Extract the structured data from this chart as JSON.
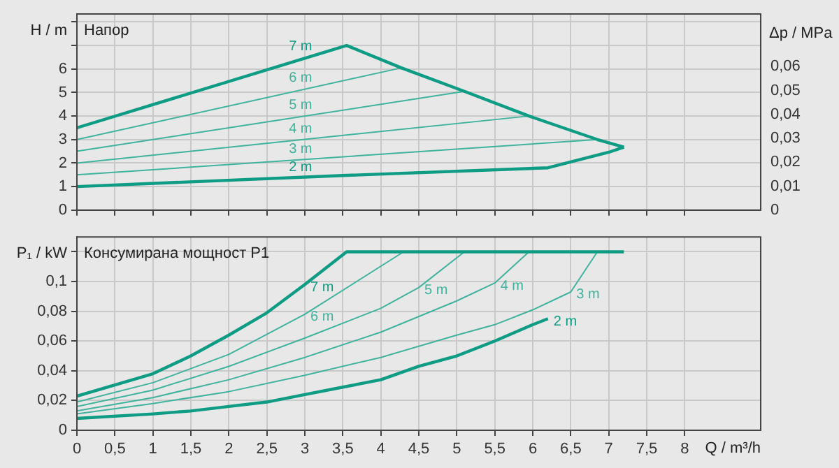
{
  "chart_data": [
    {
      "type": "line",
      "title": "Напор",
      "ylabel": "H / m",
      "y2label": "Δp / MPa",
      "grid": true,
      "legend": false,
      "marker": "none",
      "tick_labels": "y",
      "xlim": [
        0,
        9
      ],
      "ylim": [
        0,
        8.34
      ],
      "y2lim": [
        0,
        0.082
      ],
      "xticks": [
        0,
        0.5,
        1,
        1.5,
        2,
        2.5,
        3,
        3.5,
        4,
        4.5,
        5,
        5.5,
        6,
        6.5,
        7,
        7.5,
        8
      ],
      "yticks": [
        0,
        1,
        2,
        3,
        4,
        5,
        6,
        {
          "value": 7,
          "label": null
        },
        {
          "value": 8,
          "label": null
        }
      ],
      "y2ticks": [
        0,
        {
          "value": 0.01,
          "label": "0,01"
        },
        {
          "value": 0.02,
          "label": "0,02"
        },
        {
          "value": 0.03,
          "label": "0,03"
        },
        {
          "value": 0.04,
          "label": "0,04"
        },
        {
          "value": 0.05,
          "label": "0,05"
        },
        {
          "value": 0.06,
          "label": "0,06"
        }
      ],
      "series": [
        {
          "name": "7 m",
          "color": "#0e9c84",
          "x": [
            0,
            3.55,
            4.27,
            5.1,
            5.95,
            6.85,
            7.2
          ],
          "values": [
            3.5,
            7.0,
            6.05,
            5.05,
            4.0,
            3.0,
            2.68
          ]
        },
        {
          "name": "6 m",
          "color": "#3fb39d",
          "x": [
            0,
            4.27
          ],
          "values": [
            3.0,
            6.05
          ]
        },
        {
          "name": "5 m",
          "color": "#3fb39d",
          "x": [
            0,
            5.1
          ],
          "values": [
            2.5,
            5.05
          ]
        },
        {
          "name": "4 m",
          "color": "#3fb39d",
          "x": [
            0,
            5.95
          ],
          "values": [
            2.0,
            4.0
          ]
        },
        {
          "name": "3 m",
          "color": "#3fb39d",
          "x": [
            0,
            6.85
          ],
          "values": [
            1.5,
            3.0
          ]
        },
        {
          "name": "2 m",
          "color": "#0e9c84",
          "x": [
            0,
            3.5,
            6.2,
            7.0,
            7.2
          ],
          "values": [
            1.0,
            1.47,
            1.8,
            2.46,
            2.68
          ]
        }
      ]
    },
    {
      "type": "line",
      "title": "Консумирана мощност P1",
      "ylabel": "P₁ / kW",
      "xlabel": "Q / m³/h",
      "grid": true,
      "legend": false,
      "marker": "none",
      "xlim": [
        0,
        9
      ],
      "ylim": [
        0,
        0.13
      ],
      "xticks": [
        0,
        {
          "value": 0.5,
          "label": "0,5"
        },
        1,
        {
          "value": 1.5,
          "label": "1,5"
        },
        2,
        {
          "value": 2.5,
          "label": "2,5"
        },
        3,
        {
          "value": 3.5,
          "label": "3,5"
        },
        4,
        {
          "value": 4.5,
          "label": "4,5"
        },
        5,
        {
          "value": 5.5,
          "label": "5,5"
        },
        6,
        {
          "value": 6.5,
          "label": "6,5"
        },
        7,
        {
          "value": 7.5,
          "label": "7,5"
        },
        8
      ],
      "yticks": [
        0,
        {
          "value": 0.02,
          "label": "0,02"
        },
        {
          "value": 0.04,
          "label": "0,04"
        },
        {
          "value": 0.06,
          "label": "0,06"
        },
        {
          "value": 0.08,
          "label": "0,08"
        },
        {
          "value": 0.1,
          "label": "0,1"
        },
        {
          "value": 0.12,
          "label": null
        }
      ],
      "series": [
        {
          "name": "7 m",
          "color": "#0e9c84",
          "x": [
            0,
            1,
            1.5,
            2,
            2.5,
            3,
            3.55,
            7.2
          ],
          "values": [
            0.023,
            0.038,
            0.05,
            0.064,
            0.079,
            0.098,
            0.12,
            0.12
          ]
        },
        {
          "name": "6 m",
          "color": "#3fb39d",
          "x": [
            0,
            1,
            2,
            3,
            4.3
          ],
          "values": [
            0.019,
            0.032,
            0.051,
            0.078,
            0.12
          ]
        },
        {
          "name": "5 m",
          "color": "#3fb39d",
          "x": [
            0,
            1,
            2,
            3,
            4,
            4.5,
            5.1
          ],
          "values": [
            0.016,
            0.027,
            0.043,
            0.062,
            0.082,
            0.096,
            0.12
          ]
        },
        {
          "name": "4 m",
          "color": "#3fb39d",
          "x": [
            0,
            1,
            2,
            3,
            4,
            5,
            5.5,
            5.95
          ],
          "values": [
            0.013,
            0.022,
            0.034,
            0.049,
            0.066,
            0.087,
            0.099,
            0.12
          ]
        },
        {
          "name": "3 m",
          "color": "#3fb39d",
          "x": [
            0,
            1,
            2,
            3,
            4,
            5,
            5.5,
            6,
            6.5,
            6.85
          ],
          "values": [
            0.011,
            0.018,
            0.026,
            0.037,
            0.049,
            0.064,
            0.071,
            0.081,
            0.093,
            0.12
          ]
        },
        {
          "name": "2 m",
          "color": "#0e9c84",
          "x": [
            0,
            1,
            1.5,
            2,
            2.5,
            3,
            3.5,
            4,
            4.5,
            5,
            5.5,
            6,
            6.2
          ],
          "values": [
            0.008,
            0.011,
            0.013,
            0.016,
            0.019,
            0.024,
            0.029,
            0.034,
            0.043,
            0.05,
            0.06,
            0.071,
            0.075
          ]
        }
      ]
    }
  ]
}
